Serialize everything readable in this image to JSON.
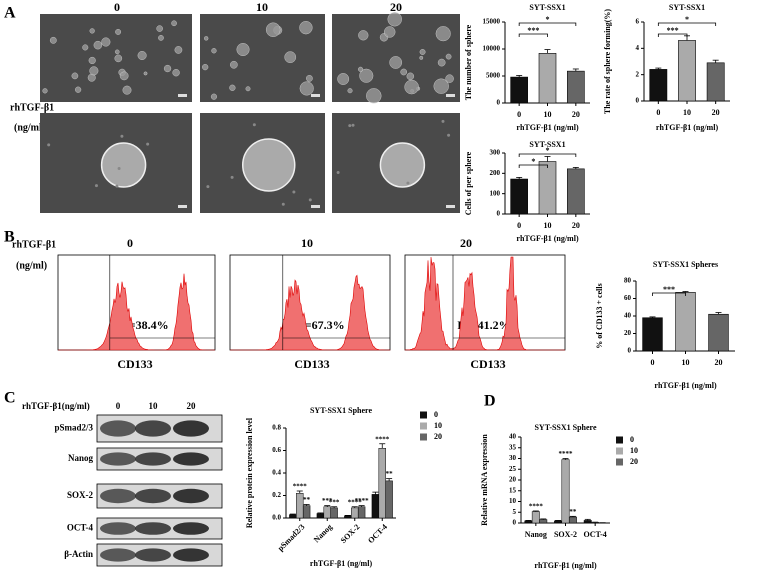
{
  "panel_labels": [
    "A",
    "B",
    "C",
    "D"
  ],
  "panel_a": {
    "columns": [
      "0",
      "10",
      "20"
    ],
    "row_label": [
      "rhTGF-β1",
      "(ng/ml)"
    ]
  },
  "panel_b": {
    "columns": [
      "0",
      "10",
      "20"
    ],
    "row_label": [
      "rhTGF-β1",
      "(ng/ml)"
    ],
    "gates": [
      "P2=38.4%",
      "P2=67.3%",
      "P2=41.2%"
    ],
    "axis_label": "CD133"
  },
  "panel_c": {
    "header": "rhTGF-β1(ng/ml)",
    "columns": [
      "0",
      "10",
      "20"
    ],
    "rows": [
      "pSmad2/3",
      "Nanog",
      "SOX-2",
      "OCT-4",
      "β-Actin"
    ]
  },
  "chart_data": [
    {
      "type": "bar",
      "title": "SYT-SSX1",
      "y_label": "The number of sphere",
      "x_label": "rhTGF-β1 (ng/ml)",
      "categories": [
        "0",
        "10",
        "20"
      ],
      "values": [
        4800,
        9200,
        5900
      ],
      "errors": [
        300,
        700,
        400
      ],
      "colors": [
        "#111111",
        "#aaaaaa",
        "#666666"
      ],
      "ylim": [
        0,
        15000
      ],
      "yticks": [
        0,
        5000,
        10000,
        15000
      ],
      "significance": [
        {
          "from": 0,
          "to": 1,
          "label": "***"
        },
        {
          "from": 0,
          "to": 2,
          "label": "*"
        }
      ]
    },
    {
      "type": "bar",
      "title": "SYT-SSX1",
      "y_label": "The rate of sphere forming(%)",
      "x_label": "rhTGF-β1 (ng/ml)",
      "categories": [
        "0",
        "10",
        "20"
      ],
      "values": [
        2.4,
        4.6,
        2.9
      ],
      "errors": [
        0.1,
        0.35,
        0.2
      ],
      "colors": [
        "#111111",
        "#aaaaaa",
        "#666666"
      ],
      "ylim": [
        0,
        6
      ],
      "yticks": [
        0,
        2,
        4,
        6
      ],
      "significance": [
        {
          "from": 0,
          "to": 1,
          "label": "***"
        },
        {
          "from": 0,
          "to": 2,
          "label": "*"
        }
      ]
    },
    {
      "type": "bar",
      "title": "SYT-SSX1",
      "y_label": "Cells of per sphere",
      "x_label": "rhTGF-β1 (ng/ml)",
      "categories": [
        "0",
        "10",
        "20"
      ],
      "values": [
        172,
        258,
        222
      ],
      "errors": [
        8,
        25,
        7
      ],
      "colors": [
        "#111111",
        "#aaaaaa",
        "#666666"
      ],
      "ylim": [
        0,
        300
      ],
      "yticks": [
        0,
        100,
        200,
        300
      ],
      "significance": [
        {
          "from": 0,
          "to": 1,
          "label": "*"
        },
        {
          "from": 0,
          "to": 2,
          "label": "*"
        }
      ]
    },
    {
      "type": "bar",
      "title": "SYT-SSX1 Spheres",
      "y_label": "% of CD133 + cells",
      "x_label": "rhTGF-β1 (ng/ml)",
      "categories": [
        "0",
        "10",
        "20"
      ],
      "values": [
        38,
        67,
        42
      ],
      "errors": [
        1,
        1,
        2
      ],
      "colors": [
        "#111111",
        "#aaaaaa",
        "#666666"
      ],
      "ylim": [
        0,
        80
      ],
      "yticks": [
        0,
        20,
        40,
        60,
        80
      ],
      "significance": [
        {
          "from": 0,
          "to": 1,
          "label": "***"
        }
      ]
    },
    {
      "type": "grouped_bar",
      "title": "SYT-SSX1 Sphere",
      "y_label": "Relative protein expression level",
      "x_label": "rhTGF-β1 (ng/ml)",
      "categories": [
        "pSmad2/3",
        "Nanog",
        "SOX-2",
        "OCT-4"
      ],
      "rotate_labels": true,
      "series": [
        {
          "name": "0",
          "color": "#111111",
          "values": [
            0.03,
            0.04,
            0.02,
            0.21
          ],
          "errors": [
            0.005,
            0.005,
            0.003,
            0.02
          ],
          "star_labels": [
            null,
            null,
            null,
            null
          ]
        },
        {
          "name": "10",
          "color": "#aaaaaa",
          "values": [
            0.22,
            0.1,
            0.09,
            0.62
          ],
          "errors": [
            0.02,
            0.01,
            0.01,
            0.04
          ],
          "star_labels": [
            "****",
            "***",
            "****",
            "****"
          ]
        },
        {
          "name": "20",
          "color": "#666666",
          "values": [
            0.11,
            0.09,
            0.1,
            0.33
          ],
          "errors": [
            0.01,
            0.01,
            0.01,
            0.02
          ],
          "star_labels": [
            "**",
            "***",
            "****",
            "**"
          ]
        }
      ],
      "ylim": [
        0,
        0.8
      ],
      "yticks": [
        {
          "value": 0,
          "label": "0.0"
        },
        0.2,
        0.4,
        0.6,
        0.8
      ]
    },
    {
      "type": "grouped_bar",
      "title": "SYT-SSX1 Sphere",
      "y_label": "Relative mRNA expression",
      "x_label": "rhTGF-β1 (ng/ml)",
      "categories": [
        "Nanog",
        "SOX-2",
        "OCT-4"
      ],
      "series": [
        {
          "name": "0",
          "color": "#111111",
          "values": [
            1.0,
            1.0,
            1.2
          ],
          "errors": [
            0.2,
            0.2,
            0.5
          ],
          "star_labels": [
            null,
            null,
            null
          ]
        },
        {
          "name": "10",
          "color": "#aaaaaa",
          "values": [
            5.3,
            29.5,
            0.3
          ],
          "errors": [
            0.3,
            0.5,
            0.1
          ],
          "star_labels": [
            "****",
            "****",
            null
          ]
        },
        {
          "name": "20",
          "color": "#666666",
          "values": [
            1.6,
            2.8,
            0.1
          ],
          "errors": [
            0.3,
            0.3,
            0.05
          ],
          "star_labels": [
            null,
            "**",
            null
          ]
        }
      ],
      "ylim": [
        0,
        40
      ],
      "yticks": [
        0,
        5,
        10,
        15,
        20,
        25,
        30,
        35,
        40
      ]
    }
  ]
}
